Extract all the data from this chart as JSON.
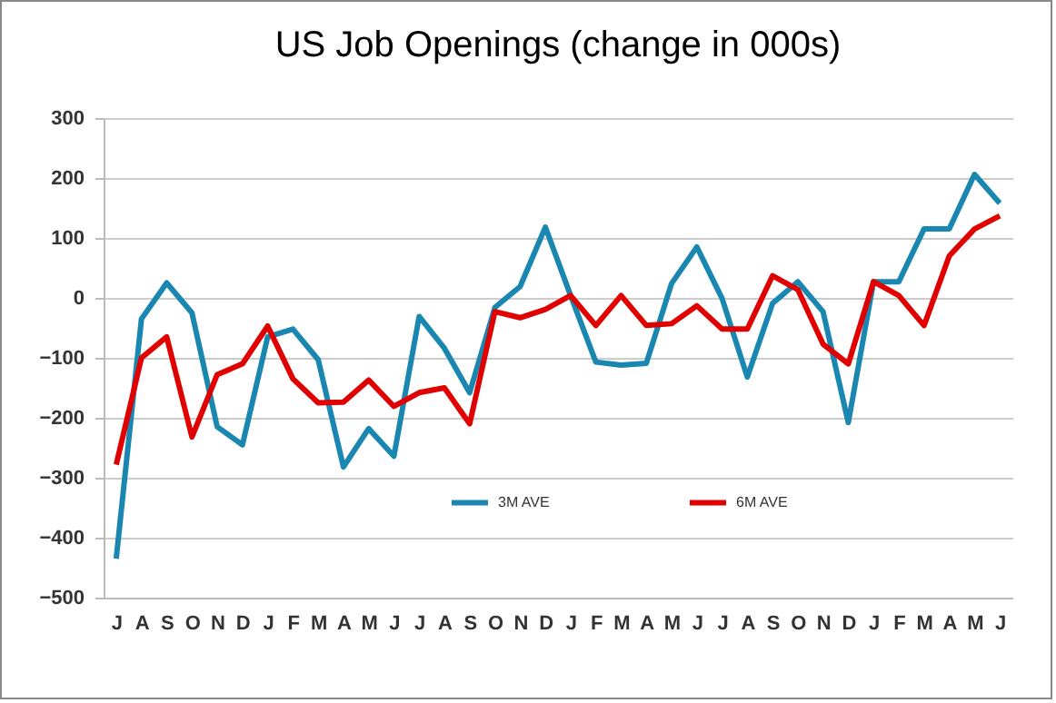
{
  "chart_data": {
    "type": "line",
    "title": "US Job Openings (change in 000s)",
    "categories": [
      "J",
      "A",
      "S",
      "O",
      "N",
      "D",
      "J",
      "F",
      "M",
      "A",
      "M",
      "J",
      "J",
      "A",
      "S",
      "O",
      "N",
      "D",
      "J",
      "F",
      "M",
      "A",
      "M",
      "J",
      "J",
      "A",
      "S",
      "O",
      "N",
      "D",
      "J",
      "F",
      "M",
      "A",
      "M",
      "J"
    ],
    "series": [
      {
        "name": "3M AVE",
        "color": "#1a87b0",
        "values": [
          -435,
          -35,
          25,
          -25,
          -215,
          -245,
          -65,
          -52,
          -103,
          -282,
          -218,
          -264,
          -31,
          -84,
          -158,
          -16,
          19,
          118,
          4,
          -107,
          -112,
          -109,
          24,
          85,
          -1,
          -132,
          -9,
          27,
          -23,
          -208,
          27,
          27,
          115,
          115,
          206,
          158
        ]
      },
      {
        "name": "6M AVE",
        "color": "#e00000",
        "values": [
          -278,
          -100,
          -65,
          -232,
          -128,
          -110,
          -47,
          -135,
          -175,
          -174,
          -137,
          -181,
          -158,
          -150,
          -210,
          -23,
          -33,
          -19,
          4,
          -46,
          4,
          -46,
          -43,
          -13,
          -52,
          -52,
          37,
          14,
          -77,
          -110,
          27,
          4,
          -46,
          70,
          115,
          137
        ]
      }
    ],
    "ylim": [
      -500,
      300
    ],
    "yticks": [
      -500,
      -400,
      -300,
      -200,
      -100,
      0,
      100,
      200,
      300
    ],
    "grid": "y",
    "legend": "bottom",
    "marker": "none",
    "line_style": "solid"
  }
}
